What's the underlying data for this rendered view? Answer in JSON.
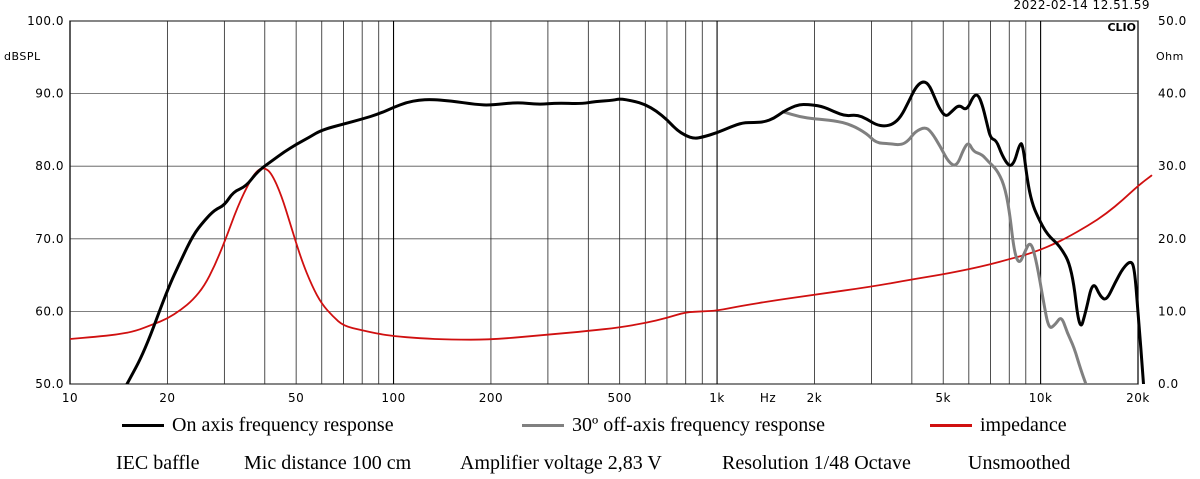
{
  "timestamp": "2022-02-14 12.51.59",
  "brand": "CLIO",
  "chart_data": {
    "type": "line",
    "xscale": "log",
    "xlim": [
      10,
      20000
    ],
    "ylim": [
      50,
      100
    ],
    "y2lim": [
      0,
      50
    ],
    "ylabel": "dBSPL",
    "y2label": "Ohm",
    "xunit": "Hz",
    "grid": true,
    "y_ticks": [
      "50.0",
      "60.0",
      "70.0",
      "80.0",
      "90.0",
      "100.0"
    ],
    "y2_ticks": [
      "0.0",
      "10.0",
      "20.0",
      "30.0",
      "40.0",
      "50.0"
    ],
    "x_ticks": [
      {
        "value": 10,
        "label": "10"
      },
      {
        "value": 20,
        "label": "20"
      },
      {
        "value": 50,
        "label": "50"
      },
      {
        "value": 100,
        "label": "100"
      },
      {
        "value": 200,
        "label": "200"
      },
      {
        "value": 500,
        "label": "500"
      },
      {
        "value": 1000,
        "label": "1k"
      },
      {
        "value": 2000,
        "label": "2k"
      },
      {
        "value": 5000,
        "label": "5k"
      },
      {
        "value": 10000,
        "label": "10k"
      },
      {
        "value": 20000,
        "label": "20k"
      }
    ],
    "series": [
      {
        "name": "On axis frequency response",
        "color": "#000000",
        "axis": "left",
        "points": [
          [
            15,
            50
          ],
          [
            17,
            54.5
          ],
          [
            20,
            63
          ],
          [
            22,
            67
          ],
          [
            24,
            70.5
          ],
          [
            26,
            72.5
          ],
          [
            28,
            74
          ],
          [
            30,
            74.6
          ],
          [
            32,
            76.5
          ],
          [
            35,
            77.2
          ],
          [
            38,
            79.3
          ],
          [
            42,
            80.7
          ],
          [
            46,
            82
          ],
          [
            50,
            83
          ],
          [
            55,
            84
          ],
          [
            60,
            85
          ],
          [
            70,
            85.8
          ],
          [
            80,
            86.5
          ],
          [
            90,
            87.2
          ],
          [
            100,
            88.1
          ],
          [
            110,
            88.8
          ],
          [
            120,
            89.1
          ],
          [
            130,
            89.2
          ],
          [
            150,
            89
          ],
          [
            180,
            88.5
          ],
          [
            200,
            88.4
          ],
          [
            240,
            88.8
          ],
          [
            280,
            88.5
          ],
          [
            320,
            88.7
          ],
          [
            380,
            88.6
          ],
          [
            420,
            88.9
          ],
          [
            480,
            89.1
          ],
          [
            500,
            89.3
          ],
          [
            550,
            89
          ],
          [
            600,
            88.5
          ],
          [
            650,
            87.6
          ],
          [
            700,
            86.4
          ],
          [
            750,
            85
          ],
          [
            800,
            84.2
          ],
          [
            850,
            83.8
          ],
          [
            900,
            84
          ],
          [
            1000,
            84.6
          ],
          [
            1100,
            85.4
          ],
          [
            1200,
            86
          ],
          [
            1300,
            86
          ],
          [
            1400,
            86.1
          ],
          [
            1500,
            86.6
          ],
          [
            1600,
            87.5
          ],
          [
            1700,
            88.1
          ],
          [
            1800,
            88.5
          ],
          [
            1900,
            88.5
          ],
          [
            2100,
            88.3
          ],
          [
            2300,
            87.5
          ],
          [
            2500,
            86.9
          ],
          [
            2700,
            87.1
          ],
          [
            2900,
            86.5
          ],
          [
            3100,
            85.7
          ],
          [
            3300,
            85.5
          ],
          [
            3500,
            85.8
          ],
          [
            3700,
            86.8
          ],
          [
            3900,
            88.8
          ],
          [
            4100,
            90.8
          ],
          [
            4300,
            91.7
          ],
          [
            4500,
            91.4
          ],
          [
            4700,
            89.5
          ],
          [
            4900,
            87.7
          ],
          [
            5100,
            86.8
          ],
          [
            5300,
            87.5
          ],
          [
            5600,
            88.5
          ],
          [
            5900,
            87.6
          ],
          [
            6200,
            89.7
          ],
          [
            6400,
            89.9
          ],
          [
            6600,
            88.5
          ],
          [
            6800,
            86.2
          ],
          [
            7000,
            83.8
          ],
          [
            7300,
            83.6
          ],
          [
            7600,
            81.5
          ],
          [
            8000,
            79.9
          ],
          [
            8300,
            80.5
          ],
          [
            8600,
            83
          ],
          [
            8800,
            83.2
          ],
          [
            9100,
            78
          ],
          [
            9400,
            75
          ],
          [
            9800,
            73
          ],
          [
            10500,
            70.5
          ],
          [
            11500,
            69
          ],
          [
            12500,
            66
          ],
          [
            13200,
            57
          ],
          [
            13800,
            60
          ],
          [
            14500,
            64.3
          ],
          [
            15300,
            62
          ],
          [
            16000,
            61.5
          ],
          [
            17000,
            64
          ],
          [
            18000,
            66
          ],
          [
            19000,
            67
          ],
          [
            19500,
            66
          ],
          [
            20000,
            60
          ],
          [
            20800,
            50
          ]
        ]
      },
      {
        "name": "30º off-axis frequency response",
        "color": "#808080",
        "axis": "left",
        "points": [
          [
            1600,
            87.5
          ],
          [
            1800,
            86.8
          ],
          [
            2000,
            86.5
          ],
          [
            2300,
            86.3
          ],
          [
            2600,
            85.7
          ],
          [
            2900,
            84.5
          ],
          [
            3100,
            83.2
          ],
          [
            3400,
            83.1
          ],
          [
            3700,
            82.9
          ],
          [
            3900,
            83.5
          ],
          [
            4100,
            84.8
          ],
          [
            4400,
            85.4
          ],
          [
            4600,
            84.7
          ],
          [
            4900,
            82.7
          ],
          [
            5200,
            80.5
          ],
          [
            5500,
            79.9
          ],
          [
            5800,
            82.5
          ],
          [
            6000,
            83.3
          ],
          [
            6200,
            82
          ],
          [
            6600,
            81.6
          ],
          [
            6900,
            80.6
          ],
          [
            7300,
            79.6
          ],
          [
            7700,
            77.6
          ],
          [
            8000,
            74
          ],
          [
            8300,
            68
          ],
          [
            8600,
            66.5
          ],
          [
            8900,
            68
          ],
          [
            9300,
            69.8
          ],
          [
            9700,
            67
          ],
          [
            10200,
            61.4
          ],
          [
            10600,
            57.5
          ],
          [
            11100,
            58.2
          ],
          [
            11600,
            59.4
          ],
          [
            12100,
            57
          ],
          [
            12700,
            55
          ],
          [
            13300,
            52
          ],
          [
            13800,
            50
          ]
        ]
      },
      {
        "name": "impedance",
        "color": "#d01010",
        "axis": "right",
        "points": [
          [
            10,
            6.2
          ],
          [
            12,
            6.5
          ],
          [
            14,
            6.8
          ],
          [
            16,
            7.3
          ],
          [
            18,
            8.2
          ],
          [
            20,
            9
          ],
          [
            22,
            10.2
          ],
          [
            24,
            11.6
          ],
          [
            26,
            13.5
          ],
          [
            28,
            16.3
          ],
          [
            30,
            19.5
          ],
          [
            33,
            24.5
          ],
          [
            36,
            28
          ],
          [
            38,
            29.5
          ],
          [
            40,
            29.8
          ],
          [
            42,
            29
          ],
          [
            45,
            26
          ],
          [
            48,
            22
          ],
          [
            52,
            17
          ],
          [
            56,
            13.5
          ],
          [
            60,
            11
          ],
          [
            65,
            9.3
          ],
          [
            70,
            8
          ],
          [
            80,
            7.4
          ],
          [
            90,
            6.9
          ],
          [
            100,
            6.6
          ],
          [
            120,
            6.3
          ],
          [
            150,
            6.1
          ],
          [
            200,
            6.1
          ],
          [
            300,
            6.8
          ],
          [
            400,
            7.3
          ],
          [
            500,
            7.8
          ],
          [
            600,
            8.4
          ],
          [
            700,
            9.1
          ],
          [
            800,
            9.9
          ],
          [
            900,
            10
          ],
          [
            1000,
            10.1
          ],
          [
            1200,
            10.8
          ],
          [
            1500,
            11.5
          ],
          [
            2000,
            12.3
          ],
          [
            3000,
            13.4
          ],
          [
            4000,
            14.4
          ],
          [
            5000,
            15.1
          ],
          [
            6000,
            15.8
          ],
          [
            7000,
            16.5
          ],
          [
            8000,
            17.2
          ],
          [
            9000,
            17.8
          ],
          [
            10000,
            18.5
          ],
          [
            11000,
            19.3
          ],
          [
            12000,
            20.1
          ],
          [
            14000,
            21.8
          ],
          [
            16000,
            23.5
          ],
          [
            18000,
            25.4
          ],
          [
            20000,
            27.3
          ],
          [
            22000,
            28.7
          ]
        ]
      }
    ]
  },
  "legend": [
    {
      "label": "On axis frequency response",
      "color": "#000000"
    },
    {
      "label": "30º off-axis frequency response",
      "color": "#808080"
    },
    {
      "label": "impedance",
      "color": "#d01010"
    }
  ],
  "footer": {
    "baffle": "IEC baffle",
    "mic": "Mic distance 100 cm",
    "voltage": "Amplifier voltage 2,83 V",
    "resolution": "Resolution 1/48 Octave",
    "smoothing": "Unsmoothed"
  }
}
